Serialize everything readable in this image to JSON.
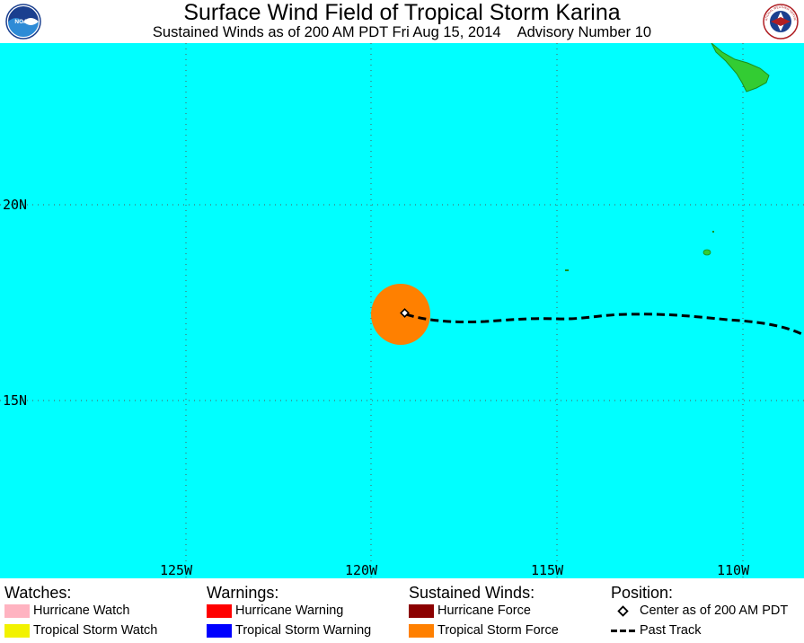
{
  "header": {
    "title": "Surface Wind Field of Tropical Storm Karina",
    "subtitle_time": "Sustained Winds as of 200 AM PDT Fri Aug 15, 2014",
    "subtitle_advisory": "Advisory Number 10",
    "left_logo_text": "NOAA",
    "right_logo_text": "NATIONAL WEATHER SERVICE"
  },
  "map": {
    "ocean_color": "#00ffff",
    "land_color": "#33cc33",
    "tropical_storm_force_color": "#ff8000",
    "lat_labels": [
      "20N",
      "15N"
    ],
    "lon_labels": [
      "125W",
      "120W",
      "115W",
      "110W"
    ],
    "storm_center": {
      "lat": 17.2,
      "lon": 119.0
    },
    "grid": "dotted"
  },
  "legend": {
    "watches": {
      "heading": "Watches:",
      "items": [
        {
          "label": "Hurricane Watch",
          "color": "#ffb3c1"
        },
        {
          "label": "Tropical Storm Watch",
          "color": "#f2f200"
        }
      ]
    },
    "warnings": {
      "heading": "Warnings:",
      "items": [
        {
          "label": "Hurricane Warning",
          "color": "#ff0000"
        },
        {
          "label": "Tropical Storm Warning",
          "color": "#0000ff"
        }
      ]
    },
    "winds": {
      "heading": "Sustained Winds:",
      "items": [
        {
          "label": "Hurricane Force",
          "color": "#8b0000"
        },
        {
          "label": "Tropical Storm Force",
          "color": "#ff8000"
        }
      ]
    },
    "position": {
      "heading": "Position:",
      "center_label": "Center as of 200 AM PDT",
      "track_label": "Past Track"
    }
  }
}
